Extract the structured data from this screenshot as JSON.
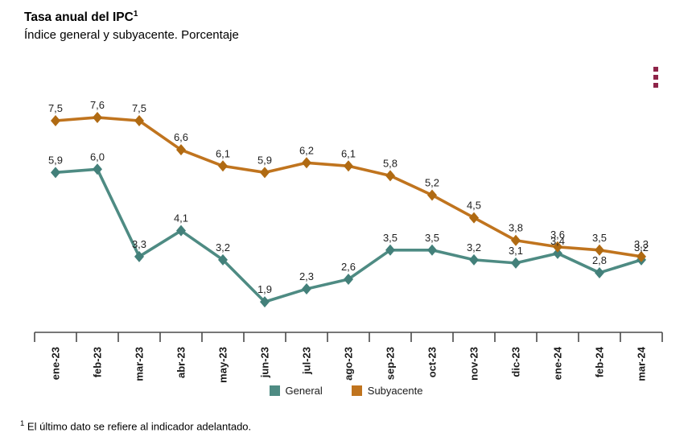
{
  "header": {
    "title": "Tasa anual del IPC",
    "title_superscript": "1",
    "subtitle": "Índice general y subyacente. Porcentaje"
  },
  "menu": {
    "icon": "kebab-menu-icon",
    "color": "#8E2449"
  },
  "chart_data": {
    "type": "line",
    "title": "Tasa anual del IPC",
    "subtitle": "Índice general y subyacente. Porcentaje",
    "categories": [
      "ene-23",
      "feb-23",
      "mar-23",
      "abr-23",
      "may-23",
      "jun-23",
      "jul-23",
      "ago-23",
      "sep-23",
      "oct-23",
      "nov-23",
      "dic-23",
      "ene-24",
      "feb-24",
      "mar-24"
    ],
    "series": [
      {
        "name": "General",
        "color": "#4E8B83",
        "marker_color": "#43807A",
        "values": [
          5.9,
          6.0,
          3.3,
          4.1,
          3.2,
          1.9,
          2.3,
          2.6,
          3.5,
          3.5,
          3.2,
          3.1,
          3.4,
          2.8,
          3.2
        ]
      },
      {
        "name": "Subyacente",
        "color": "#C0741E",
        "marker_color": "#B06A12",
        "values": [
          7.5,
          7.6,
          7.5,
          6.6,
          6.1,
          5.9,
          6.2,
          6.1,
          5.8,
          5.2,
          4.5,
          3.8,
          3.6,
          3.5,
          3.3
        ]
      }
    ],
    "marker": "diamond",
    "value_labels": true,
    "decimal_separator": ",",
    "grid": false,
    "y_axis_visible": false,
    "ylim": [
      1.5,
      8.2
    ],
    "legend_position": "bottom",
    "axis_color": "#4a4a4a"
  },
  "footnote": {
    "superscript": "1",
    "text": "El último dato se refiere al indicador adelantado."
  }
}
